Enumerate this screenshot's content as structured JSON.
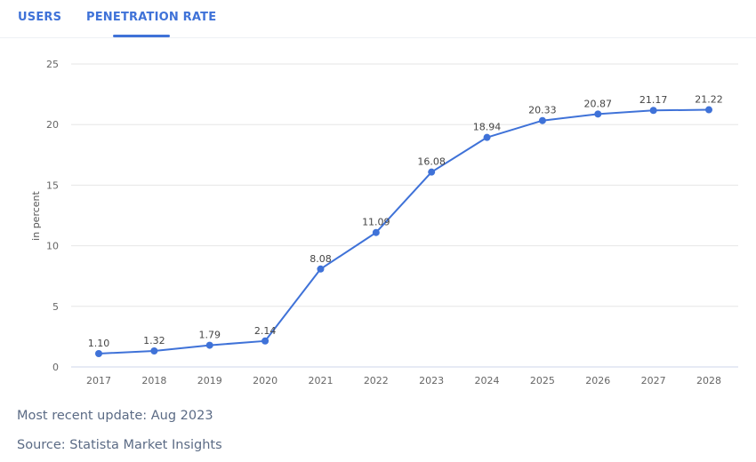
{
  "tabs": [
    {
      "label": "USERS",
      "active": false
    },
    {
      "label": "PENETRATION RATE",
      "active": true
    }
  ],
  "accent_color": "#3f72d8",
  "footer": {
    "update": "Most recent update: Aug 2023",
    "source": "Source: Statista Market Insights"
  },
  "chart_data": {
    "type": "line",
    "ylabel": "in percent",
    "xlabel": "",
    "ylim": [
      0,
      25
    ],
    "yticks": [
      0,
      5,
      10,
      15,
      20,
      25
    ],
    "grid": true,
    "categories": [
      "2017",
      "2018",
      "2019",
      "2020",
      "2021",
      "2022",
      "2023",
      "2024",
      "2025",
      "2026",
      "2027",
      "2028"
    ],
    "values": [
      1.1,
      1.32,
      1.79,
      2.14,
      8.08,
      11.09,
      16.08,
      18.94,
      20.33,
      20.87,
      21.17,
      21.22
    ],
    "data_labels": [
      "1.10",
      "1.32",
      "1.79",
      "2.14",
      "8.08",
      "11.09",
      "16.08",
      "18.94",
      "20.33",
      "20.87",
      "21.17",
      "21.22"
    ],
    "line_color": "#3f72d8"
  }
}
